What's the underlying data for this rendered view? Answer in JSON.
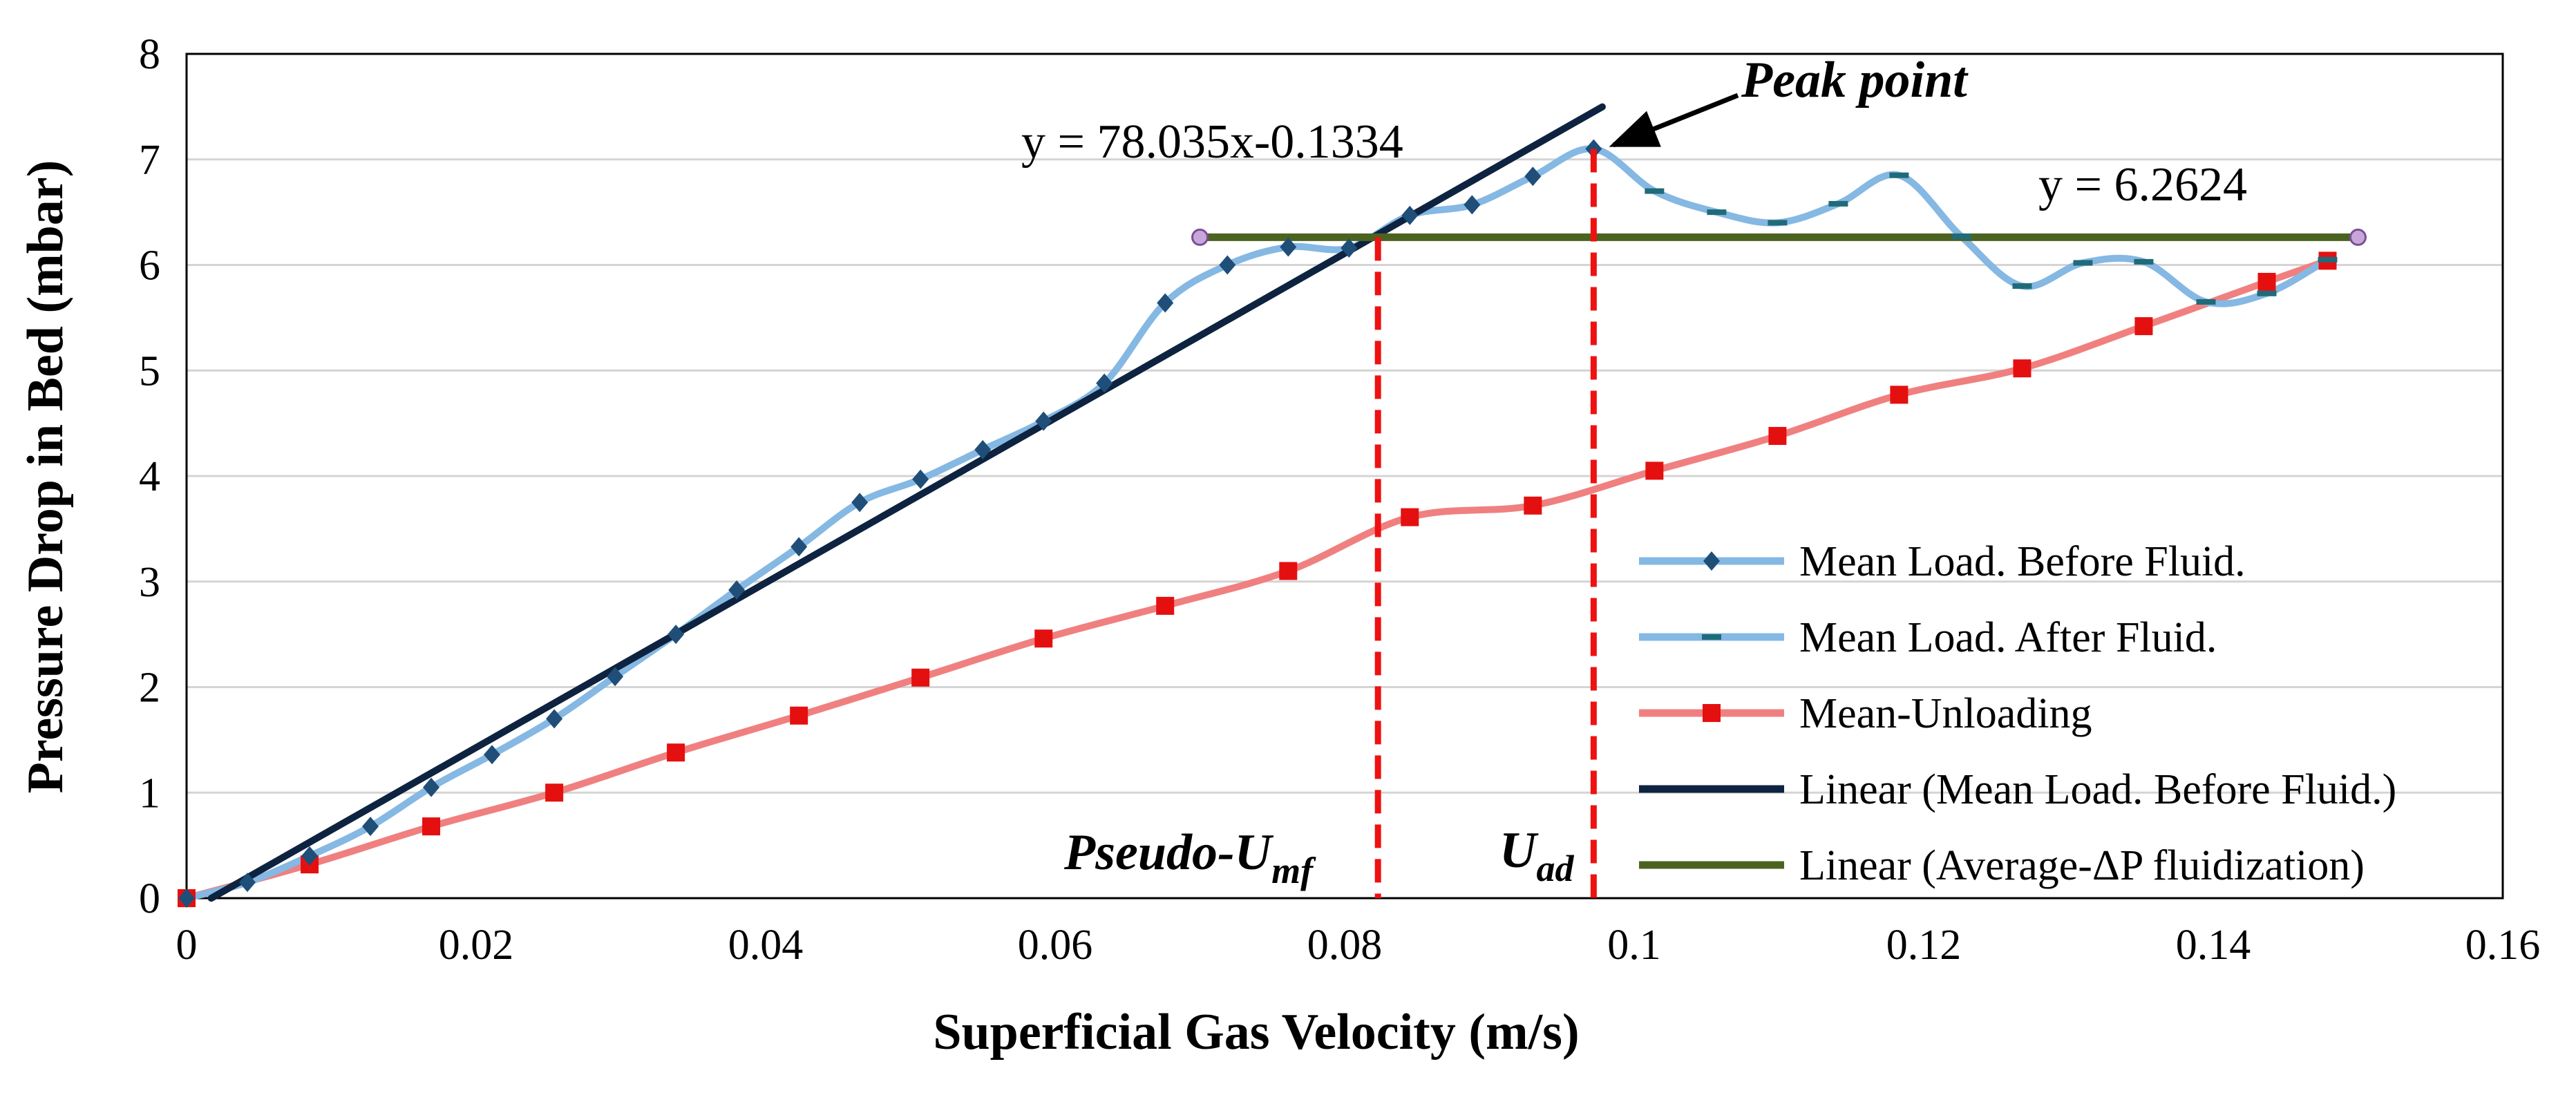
{
  "chart_data": {
    "type": "line",
    "xlabel": "Superficial Gas Velocity (m/s)",
    "ylabel": "Pressure Drop in Bed (mbar)",
    "xlim": [
      0,
      0.16
    ],
    "ylim": [
      0,
      8
    ],
    "xticks": [
      "0",
      "0.02",
      "0.04",
      "0.06",
      "0.08",
      "0.1",
      "0.12",
      "0.14",
      "0.16"
    ],
    "yticks": [
      "0",
      "1",
      "2",
      "3",
      "4",
      "5",
      "6",
      "7",
      "8"
    ],
    "grid": "horizontal",
    "legend_position": "bottom-right",
    "series": [
      {
        "name": "Mean Load. Before Fluid.",
        "color": "#85b8e3",
        "marker": "diamond",
        "marker_color": "#1f4e79",
        "x": [
          0,
          0.0042,
          0.0085,
          0.0127,
          0.0169,
          0.0211,
          0.0254,
          0.0296,
          0.0338,
          0.038,
          0.0423,
          0.0465,
          0.0507,
          0.055,
          0.0592,
          0.0634,
          0.0676,
          0.0719,
          0.0761,
          0.0803,
          0.0845,
          0.0888,
          0.093,
          0.0972
        ],
        "y": [
          0,
          0.15,
          0.4,
          0.68,
          1.05,
          1.36,
          1.7,
          2.1,
          2.5,
          2.92,
          3.33,
          3.75,
          3.97,
          4.25,
          4.52,
          4.88,
          5.64,
          6.0,
          6.17,
          6.16,
          6.47,
          6.57,
          6.84,
          7.1
        ]
      },
      {
        "name": "Mean Load. After Fluid.",
        "color": "#85b8e3",
        "marker": "dash",
        "marker_color": "#1f6b7a",
        "x": [
          0.0972,
          0.1014,
          0.1057,
          0.1099,
          0.1141,
          0.1183,
          0.1226,
          0.1268,
          0.131,
          0.1352,
          0.1395,
          0.1437,
          0.1479
        ],
        "y": [
          7.1,
          6.7,
          6.5,
          6.4,
          6.58,
          6.85,
          6.27,
          5.8,
          6.02,
          6.03,
          5.65,
          5.73,
          6.05
        ]
      },
      {
        "name": "Mean-Unloading",
        "color": "#f08080",
        "marker": "square",
        "marker_color": "#e41010",
        "x": [
          0,
          0.0085,
          0.0169,
          0.0254,
          0.0338,
          0.0423,
          0.0507,
          0.0592,
          0.0676,
          0.0761,
          0.0845,
          0.093,
          0.1014,
          0.1099,
          0.1183,
          0.1268,
          0.1352,
          0.1437,
          0.1479
        ],
        "y": [
          0,
          0.32,
          0.68,
          1.0,
          1.38,
          1.73,
          2.09,
          2.46,
          2.77,
          3.1,
          3.61,
          3.72,
          4.05,
          4.38,
          4.77,
          5.02,
          5.42,
          5.84,
          6.04
        ]
      },
      {
        "name": "Linear (Mean Load. Before Fluid.)",
        "color": "#0d2340",
        "equation": "y = 78.035x-0.1334",
        "slope": 78.035,
        "intercept": -0.1334,
        "x_range": [
          0.0017,
          0.0978
        ]
      },
      {
        "name": "Linear (Average-ΔP fluidization)",
        "color": "#4b6320",
        "equation": "y = 6.2624",
        "value": 6.2624,
        "x_range": [
          0.07,
          0.15
        ]
      }
    ],
    "vertical_lines": [
      {
        "name": "pseudo-umf",
        "x": 0.0823,
        "color": "#ee1111"
      },
      {
        "name": "uad",
        "x": 0.0972,
        "color": "#ee1111"
      }
    ],
    "annotations": {
      "peak_label": "Peak point",
      "pseudo_prefix": "Pseudo-U",
      "pseudo_sub": "mf",
      "uad_main": "U",
      "uad_sub": "ad",
      "peak_target": [
        0.0972,
        7.1
      ]
    }
  }
}
